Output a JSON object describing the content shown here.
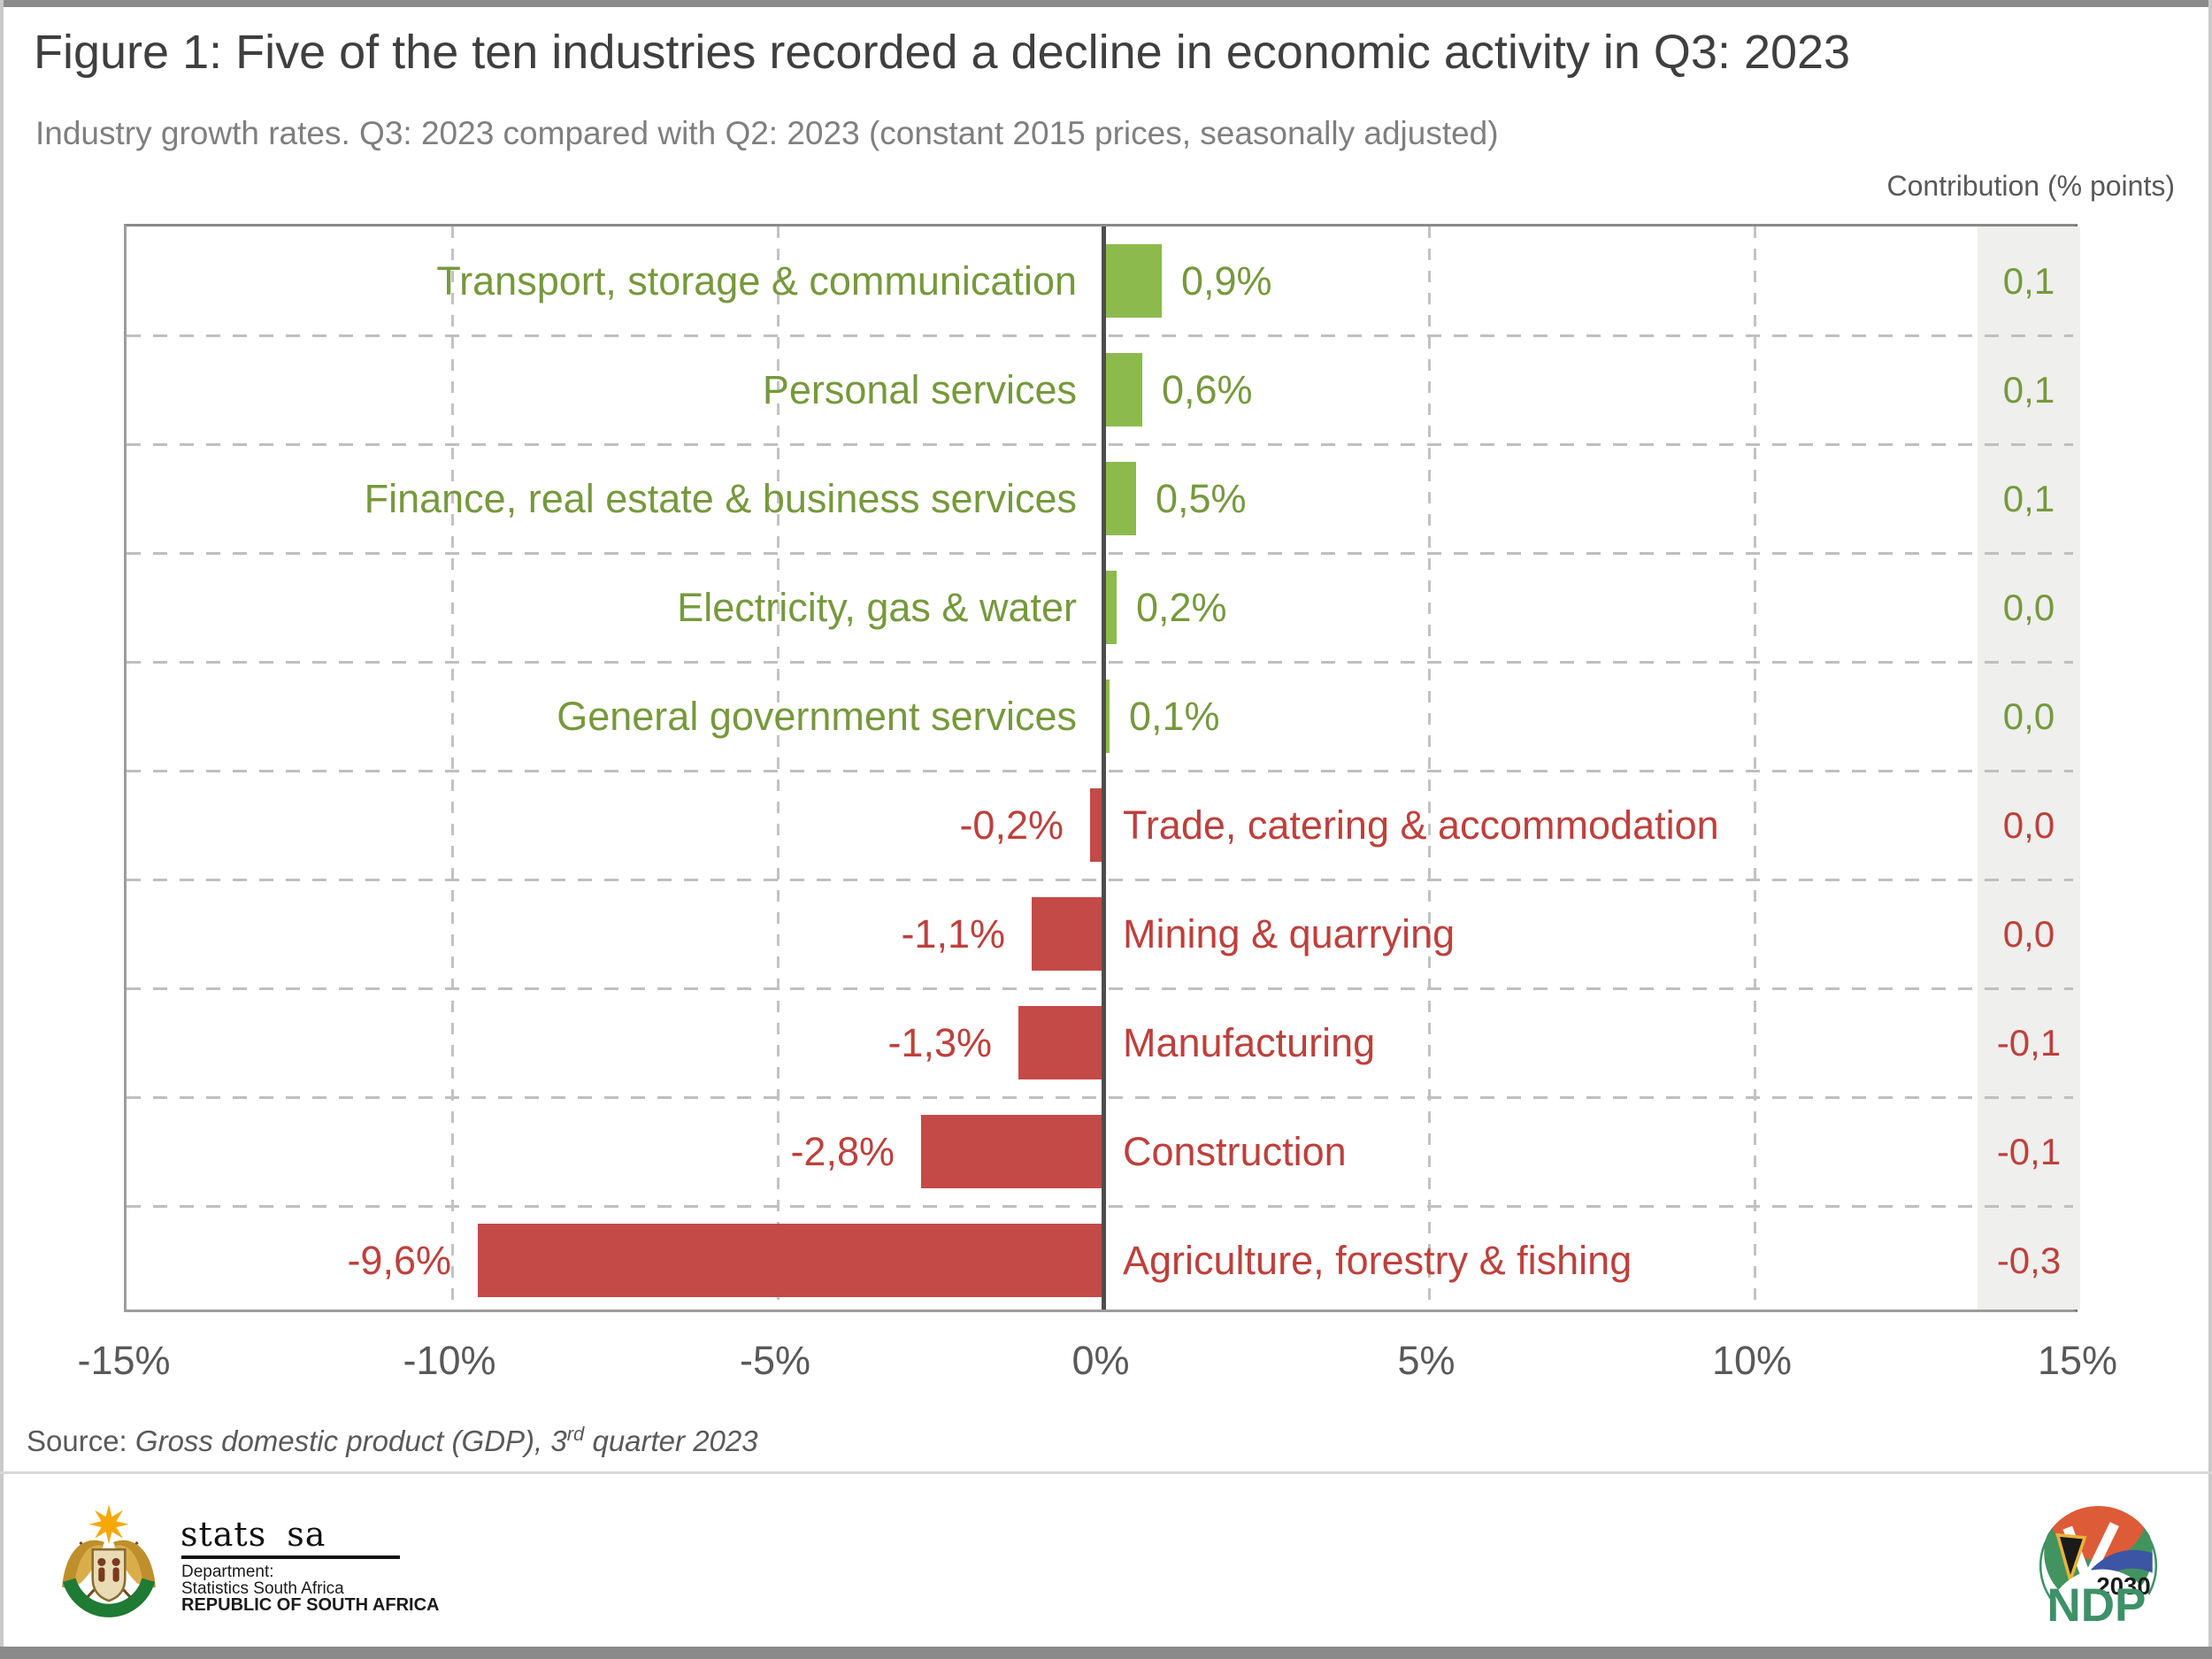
{
  "figure": {
    "title": "Figure 1: Five of the ten industries recorded a decline in economic activity in Q3: 2023",
    "subtitle": "Industry growth rates. Q3: 2023 compared with Q2: 2023 (constant 2015 prices, seasonally adjusted)",
    "contribution_header": "Contribution (% points)",
    "source_prefix": "Source: ",
    "source_italic_1": "Gross domestic product (GDP), 3",
    "source_superscript": "rd",
    "source_italic_2": " quarter 2023"
  },
  "chart_data": {
    "type": "bar",
    "orientation": "horizontal",
    "title": "Figure 1: Five of the ten industries recorded a decline in economic activity in Q3: 2023",
    "subtitle": "Industry growth rates. Q3: 2023 compared with Q2: 2023 (constant 2015 prices, seasonally adjusted)",
    "value_unit": "%",
    "xlim": [
      -15,
      15
    ],
    "x_ticks": [
      {
        "value": -15,
        "label": "-15%"
      },
      {
        "value": -10,
        "label": "-10%"
      },
      {
        "value": -5,
        "label": "-5%"
      },
      {
        "value": 0,
        "label": "0%"
      },
      {
        "value": 5,
        "label": "5%"
      },
      {
        "value": 10,
        "label": "10%"
      },
      {
        "value": 15,
        "label": "15%"
      }
    ],
    "grid": "dashed",
    "legend": "none",
    "colors": {
      "bar_positive": "#8DBA4D",
      "bar_negative": "#C44A47",
      "text_positive": "#76993C",
      "text_negative": "#BE403C",
      "axis_text": "#595959",
      "contribution_band_background": "#EFEFED"
    },
    "contribution_header": "Contribution (% points)",
    "rows": [
      {
        "category": "Transport, storage & communication",
        "value": 0.9,
        "value_label": "0,9%",
        "contribution": 0.1,
        "contribution_label": "0,1",
        "sentiment": "pos"
      },
      {
        "category": "Personal services",
        "value": 0.6,
        "value_label": "0,6%",
        "contribution": 0.1,
        "contribution_label": "0,1",
        "sentiment": "pos"
      },
      {
        "category": "Finance, real estate & business services",
        "value": 0.5,
        "value_label": "0,5%",
        "contribution": 0.1,
        "contribution_label": "0,1",
        "sentiment": "pos"
      },
      {
        "category": "Electricity, gas & water",
        "value": 0.2,
        "value_label": "0,2%",
        "contribution": 0.0,
        "contribution_label": "0,0",
        "sentiment": "pos"
      },
      {
        "category": "General government services",
        "value": 0.1,
        "value_label": "0,1%",
        "contribution": 0.0,
        "contribution_label": "0,0",
        "sentiment": "pos"
      },
      {
        "category": "Trade, catering & accommodation",
        "value": -0.2,
        "value_label": "-0,2%",
        "contribution": 0.0,
        "contribution_label": "0,0",
        "sentiment": "neg"
      },
      {
        "category": "Mining & quarrying",
        "value": -1.1,
        "value_label": "-1,1%",
        "contribution": 0.0,
        "contribution_label": "0,0",
        "sentiment": "neg"
      },
      {
        "category": "Manufacturing",
        "value": -1.3,
        "value_label": "-1,3%",
        "contribution": -0.1,
        "contribution_label": "-0,1",
        "sentiment": "neg"
      },
      {
        "category": "Construction",
        "value": -2.8,
        "value_label": "-2,8%",
        "contribution": -0.1,
        "contribution_label": "-0,1",
        "sentiment": "neg"
      },
      {
        "category": "Agriculture, forestry & fishing",
        "value": -9.6,
        "value_label": "-9,6%",
        "contribution": -0.3,
        "contribution_label": "-0,3",
        "sentiment": "neg"
      }
    ]
  },
  "footer": {
    "stats_sa": {
      "wordmark": "stats sa",
      "dept_line1": "Department:",
      "dept_line2": "Statistics South Africa",
      "dept_line3": "REPUBLIC OF SOUTH AFRICA"
    },
    "ndp": {
      "year": "2030",
      "acronym": "NDP"
    }
  }
}
